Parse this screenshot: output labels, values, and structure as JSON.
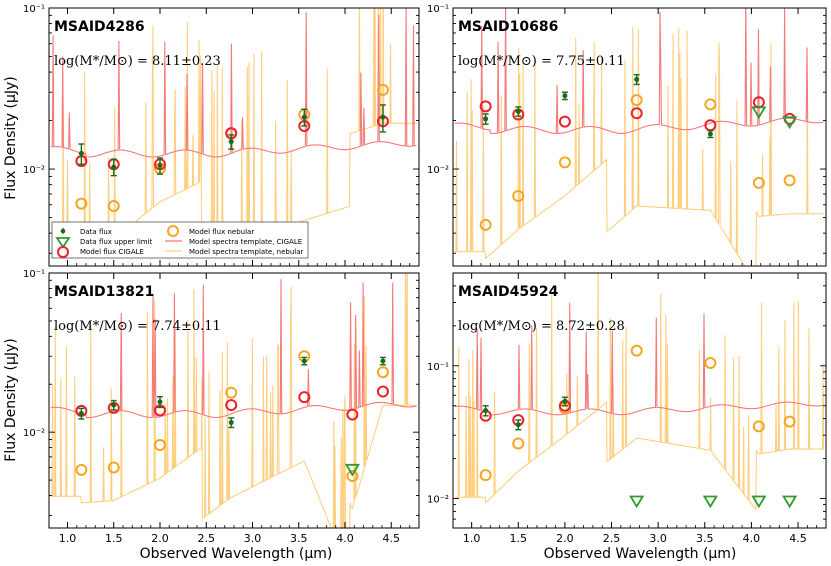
{
  "figure": {
    "ylabel": "Flux Density (μJy)",
    "xlabel": "Observed Wavelength (μm)",
    "x_ticks": [
      "1.0",
      "1.5",
      "2.0",
      "2.5",
      "3.0",
      "3.5",
      "4.0",
      "4.5"
    ],
    "colors": {
      "data": "#1a6b1a",
      "upper": "#2e9b2e",
      "cigale": "#e8212a",
      "nebular": "#f5a623",
      "cigale_line": "#f47a7a",
      "nebular_line": "#ffcf80"
    }
  },
  "legend": {
    "data_flux": "Data flux",
    "upper_limit": "Data flux upper limit",
    "model_cigale": "Model flux CIGALE",
    "model_nebular": "Model flux nebular",
    "template_cigale": "Model spectra template, CIGALE",
    "template_nebular": "Model spectra template, nebular"
  },
  "chart_data": [
    {
      "type": "scatter",
      "title": "MSAID4286",
      "mass_label": "log(M*/M⊙) = 8.11±0.23",
      "xlim": [
        0.8,
        4.8
      ],
      "ylim": [
        0.0025,
        0.1
      ],
      "yscale": "log",
      "y_ticks": [
        "10⁻²",
        "10⁻¹"
      ],
      "data_flux": {
        "x": [
          1.15,
          1.5,
          2.0,
          2.77,
          3.56,
          4.41
        ],
        "y": [
          0.0125,
          0.0103,
          0.0105,
          0.0148,
          0.021,
          0.021
        ],
        "err": [
          0.0018,
          0.0012,
          0.0012,
          0.0015,
          0.0025,
          0.004
        ]
      },
      "upper_limits": {
        "x": [],
        "y": []
      },
      "model_cigale": {
        "x": [
          1.15,
          1.5,
          2.0,
          2.77,
          3.56,
          4.41
        ],
        "y": [
          0.0112,
          0.0107,
          0.0107,
          0.0167,
          0.0185,
          0.0198
        ]
      },
      "model_nebular": {
        "x": [
          1.15,
          1.5,
          2.0,
          2.77,
          3.56,
          4.41
        ],
        "y": [
          0.0061,
          0.0059,
          0.0101,
          0.0166,
          0.0218,
          0.031
        ]
      },
      "cigale_base": 0.0125
    },
    {
      "type": "scatter",
      "title": "MSAID10686",
      "mass_label": "log(M*/M⊙) = 7.75±0.11",
      "xlim": [
        0.8,
        4.8
      ],
      "ylim": [
        0.0025,
        0.1
      ],
      "yscale": "log",
      "y_ticks": [
        "10⁻²",
        "10⁻¹"
      ],
      "data_flux": {
        "x": [
          1.15,
          1.5,
          2.0,
          2.77,
          3.56
        ],
        "y": [
          0.0205,
          0.0228,
          0.0285,
          0.036,
          0.0165
        ],
        "err": [
          0.0015,
          0.0015,
          0.0015,
          0.0025,
          0.0008
        ]
      },
      "upper_limits": {
        "x": [
          4.08,
          4.41
        ],
        "y": [
          0.0225,
          0.0195
        ]
      },
      "model_cigale": {
        "x": [
          1.15,
          1.5,
          2.0,
          2.77,
          3.56,
          4.08,
          4.41
        ],
        "y": [
          0.0245,
          0.0218,
          0.0197,
          0.0222,
          0.0187,
          0.026,
          0.0205
        ]
      },
      "model_nebular": {
        "x": [
          1.15,
          1.5,
          2.0,
          2.77,
          3.56,
          4.08,
          4.41
        ],
        "y": [
          0.0045,
          0.0068,
          0.011,
          0.0268,
          0.0252,
          0.0082,
          0.0085
        ]
      },
      "cigale_base": 0.0175
    },
    {
      "type": "scatter",
      "title": "MSAID13821",
      "mass_label": "log(M*/M⊙) = 7.74±0.11",
      "xlim": [
        0.8,
        4.8
      ],
      "ylim": [
        0.0025,
        0.1
      ],
      "yscale": "log",
      "y_ticks": [
        "10⁻²",
        "10⁻¹"
      ],
      "data_flux": {
        "x": [
          1.15,
          1.5,
          2.0,
          2.77,
          3.56,
          4.41
        ],
        "y": [
          0.0131,
          0.0148,
          0.0155,
          0.0115,
          0.028,
          0.028
        ],
        "err": [
          0.001,
          0.001,
          0.0012,
          0.0008,
          0.0015,
          0.0015
        ]
      },
      "upper_limits": {
        "x": [
          4.08
        ],
        "y": [
          0.0058
        ]
      },
      "model_cigale": {
        "x": [
          1.15,
          1.5,
          2.0,
          2.77,
          3.56,
          4.08,
          4.41
        ],
        "y": [
          0.0136,
          0.0142,
          0.0137,
          0.0148,
          0.0166,
          0.0129,
          0.018
        ]
      },
      "model_nebular": {
        "x": [
          1.15,
          1.5,
          2.0,
          2.77,
          3.56,
          4.08,
          4.41
        ],
        "y": [
          0.0058,
          0.006,
          0.0083,
          0.0177,
          0.03,
          0.0053,
          0.0238
        ]
      },
      "cigale_base": 0.013
    },
    {
      "type": "scatter",
      "title": "MSAID45924",
      "mass_label": "log(M*/M⊙) = 8.72±0.28",
      "xlim": [
        0.8,
        4.8
      ],
      "ylim": [
        0.006,
        0.5
      ],
      "yscale": "log",
      "y_ticks": [
        "10⁻²",
        "10⁻¹"
      ],
      "data_flux": {
        "x": [
          1.15,
          1.5,
          2.0
        ],
        "y": [
          0.046,
          0.036,
          0.054
        ],
        "err": [
          0.004,
          0.003,
          0.004
        ]
      },
      "upper_limits": {
        "x": [
          2.77,
          3.56,
          4.08,
          4.41
        ],
        "y": [
          0.0095,
          0.0095,
          0.0095,
          0.0095
        ]
      },
      "model_cigale": {
        "x": [
          1.15,
          1.5,
          2.0
        ],
        "y": [
          0.042,
          0.039,
          0.05
        ]
      },
      "model_nebular": {
        "x": [
          1.15,
          1.5,
          2.0,
          2.77,
          3.56,
          4.08,
          4.41
        ],
        "y": [
          0.015,
          0.026,
          0.048,
          0.13,
          0.105,
          0.035,
          0.038
        ]
      },
      "cigale_base": 0.045
    }
  ]
}
